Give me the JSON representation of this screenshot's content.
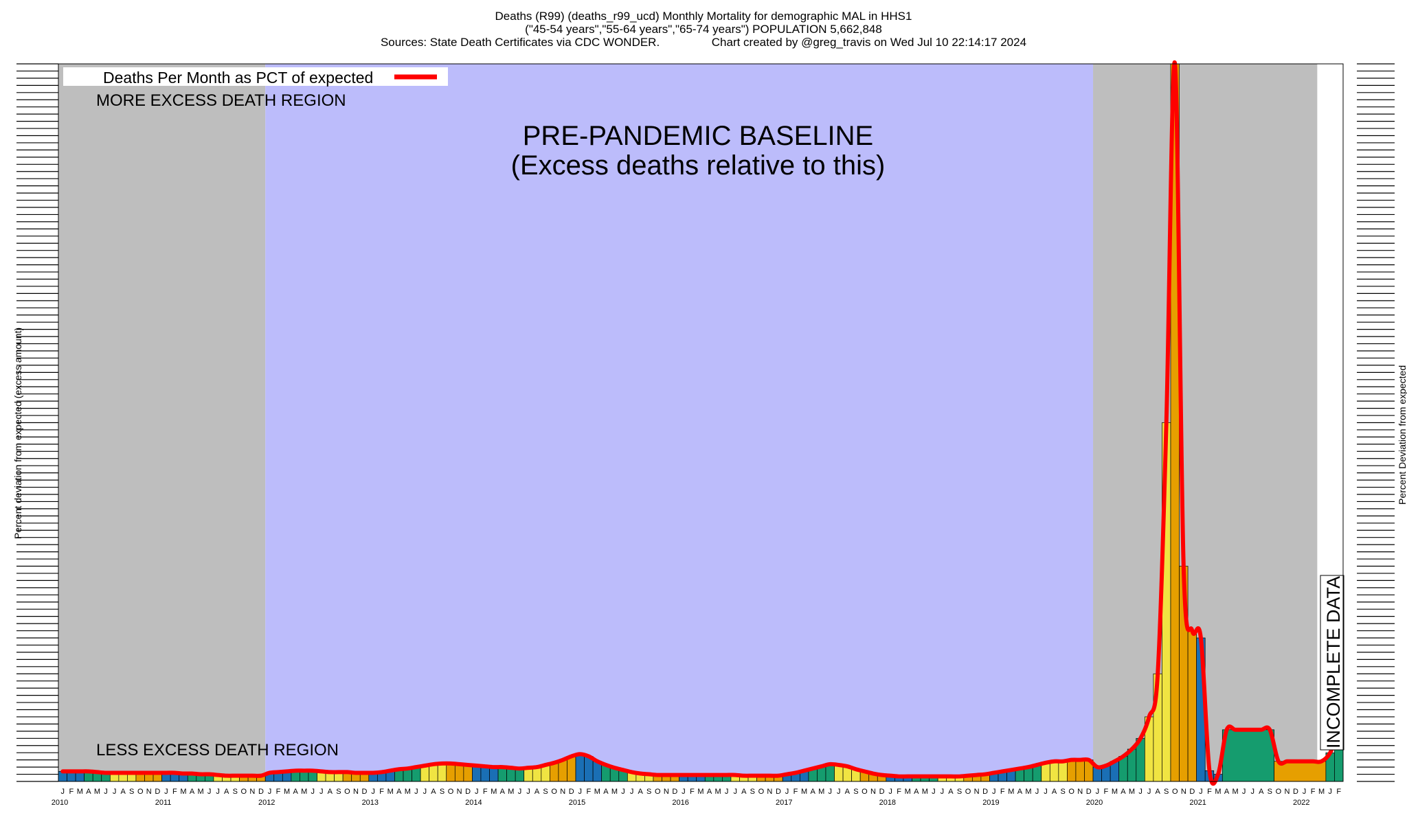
{
  "title": {
    "line1": "Deaths (R99) (deaths_r99_ucd) Monthly Mortality for demographic MAL in HHS1",
    "line2": "(\"45-54 years\",\"55-64 years\",\"65-74 years\") POPULATION 5,662,848",
    "line3": "Sources: State Death Certificates via CDC WONDER.                Chart created by @greg_travis on Wed Jul 10 22:14:17 2024"
  },
  "axes": {
    "ylabel_left": "Percent deviation from expected (excess amount)",
    "ylabel_right": "Percent Deviation from expected"
  },
  "annotations": {
    "more": "MORE EXCESS DEATH REGION",
    "less": "LESS EXCESS DEATH REGION",
    "baseline1": "PRE-PANDEMIC BASELINE",
    "baseline2": "(Excess deaths relative to this)",
    "incomplete": "INCOMPLETE DATA"
  },
  "colors": {
    "background": "#ffffff",
    "grey_region": "#bebebe",
    "baseline_region": "#bcbcfb",
    "line": "#ff0000",
    "q1": "#1a6fb5",
    "q2": "#159c6e",
    "q3": "#f0e442",
    "q4": "#e69f00"
  },
  "chart_data": {
    "type": "bar",
    "legend": {
      "label": "Deaths Per Month as PCT of expected",
      "placement": "top-left"
    },
    "x_month_letters": [
      "J",
      "F",
      "M",
      "A",
      "M",
      "J",
      "J",
      "A",
      "S",
      "O",
      "N",
      "D"
    ],
    "x_years": [
      "2010",
      "2011",
      "2012",
      "2013",
      "2014",
      "2015",
      "2016",
      "2017",
      "2018",
      "2019",
      "2020",
      "2021",
      "2022"
    ],
    "final_month_letters": [
      "J",
      "F"
    ],
    "regions": [
      {
        "kind": "more_excess",
        "from": "2010-01",
        "to": "2011-12"
      },
      {
        "kind": "baseline",
        "from": "2012-01",
        "to": "2019-12"
      },
      {
        "kind": "more_excess",
        "from": "2020-01",
        "to": "2022-02"
      }
    ],
    "series": [
      {
        "name": "Deaths Per Month as PCT of expected",
        "note": "relative heights read from the figure (0 = bottom of plot, 100 = top); y tick labels are illegible",
        "start": "2010-01",
        "values": [
          1.4,
          1.4,
          1.4,
          1.4,
          1.3,
          1.2,
          1.2,
          1.2,
          1.2,
          1.2,
          1.2,
          1.2,
          1.2,
          1.2,
          1.1,
          1.1,
          1.0,
          1.0,
          0.9,
          0.8,
          0.8,
          0.8,
          0.8,
          0.8,
          1.2,
          1.3,
          1.4,
          1.5,
          1.5,
          1.5,
          1.4,
          1.3,
          1.3,
          1.3,
          1.2,
          1.2,
          1.2,
          1.3,
          1.5,
          1.7,
          1.8,
          2.0,
          2.2,
          2.4,
          2.5,
          2.5,
          2.4,
          2.3,
          2.2,
          2.1,
          2.0,
          2.0,
          1.9,
          1.8,
          1.9,
          2.0,
          2.3,
          2.6,
          3.0,
          3.5,
          3.8,
          3.5,
          2.8,
          2.3,
          1.9,
          1.6,
          1.3,
          1.1,
          1.0,
          0.9,
          0.9,
          0.9,
          0.9,
          0.9,
          0.9,
          0.9,
          0.9,
          0.9,
          0.9,
          0.8,
          0.8,
          0.8,
          0.8,
          0.8,
          1.0,
          1.2,
          1.5,
          1.8,
          2.1,
          2.4,
          2.3,
          2.1,
          1.7,
          1.4,
          1.1,
          0.9,
          0.8,
          0.7,
          0.7,
          0.7,
          0.7,
          0.7,
          0.7,
          0.7,
          0.7,
          0.8,
          0.9,
          1.0,
          1.2,
          1.4,
          1.6,
          1.8,
          2.0,
          2.3,
          2.6,
          2.8,
          2.8,
          3.0,
          3.0,
          3.0,
          2.0,
          2.2,
          2.8,
          3.5,
          4.5,
          6.0,
          9.0,
          15.0,
          50.0,
          100.0,
          30.0,
          21.0,
          20.0,
          1.5,
          1.0,
          7.2,
          7.2,
          7.2,
          7.2,
          7.2,
          7.2,
          2.8,
          2.8,
          2.8,
          2.8,
          2.8,
          2.8,
          4.0,
          7.0
        ]
      }
    ]
  }
}
